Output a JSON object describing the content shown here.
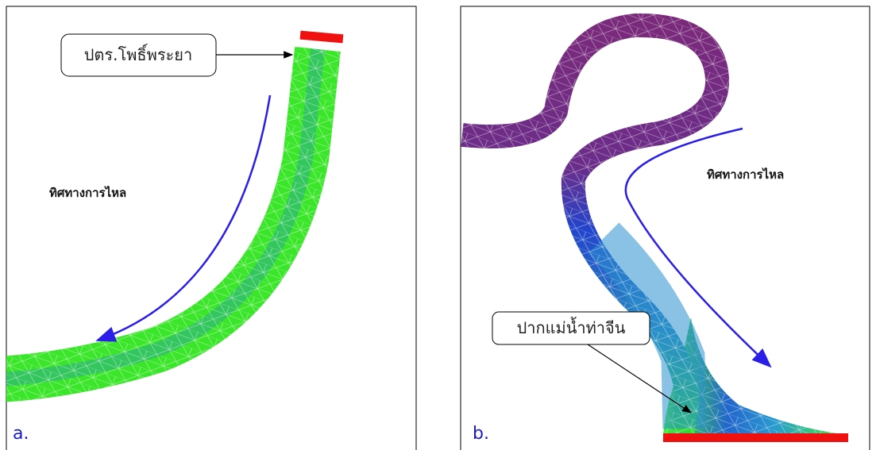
{
  "panels": [
    {
      "label": "a.",
      "callout": "ปตร.โพธิ์พระยา",
      "flow_label": "ทิศทางการไหล"
    },
    {
      "label": "b.",
      "callout": "ปากแม่น้ำท่าจีน",
      "flow_label": "ทิศทางการไหล"
    }
  ]
}
